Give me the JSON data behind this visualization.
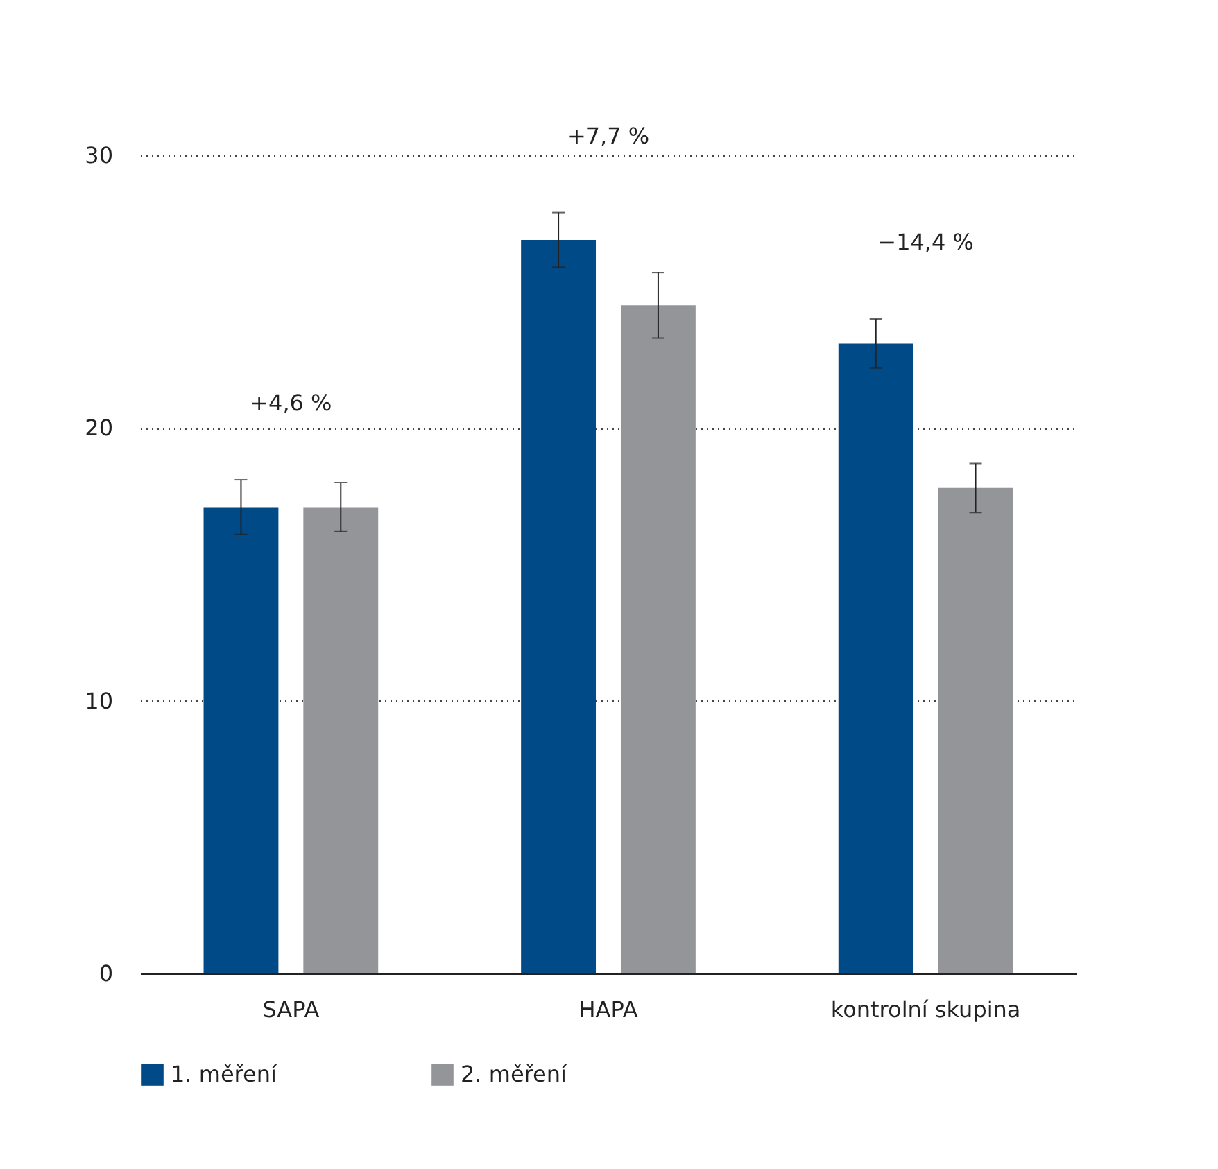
{
  "chart_data": {
    "type": "bar",
    "categories": [
      "SAPA",
      "HAPA",
      "kontrolní skupina"
    ],
    "series": [
      {
        "name": "1. měření",
        "color": "#004a87",
        "values": [
          17.1,
          26.9,
          23.1
        ],
        "errors": [
          1.0,
          1.0,
          0.9
        ]
      },
      {
        "name": "2. měření",
        "color": "#939598",
        "values": [
          17.1,
          24.5,
          17.8
        ],
        "errors": [
          0.9,
          1.2,
          0.9
        ]
      }
    ],
    "annotations": [
      "+4,6 %",
      "+7,7 %",
      "−14,4 %"
    ],
    "ylim": [
      0,
      30
    ],
    "yticks": [
      0,
      10,
      20,
      30
    ],
    "grid": "y",
    "legend": "bottom"
  }
}
